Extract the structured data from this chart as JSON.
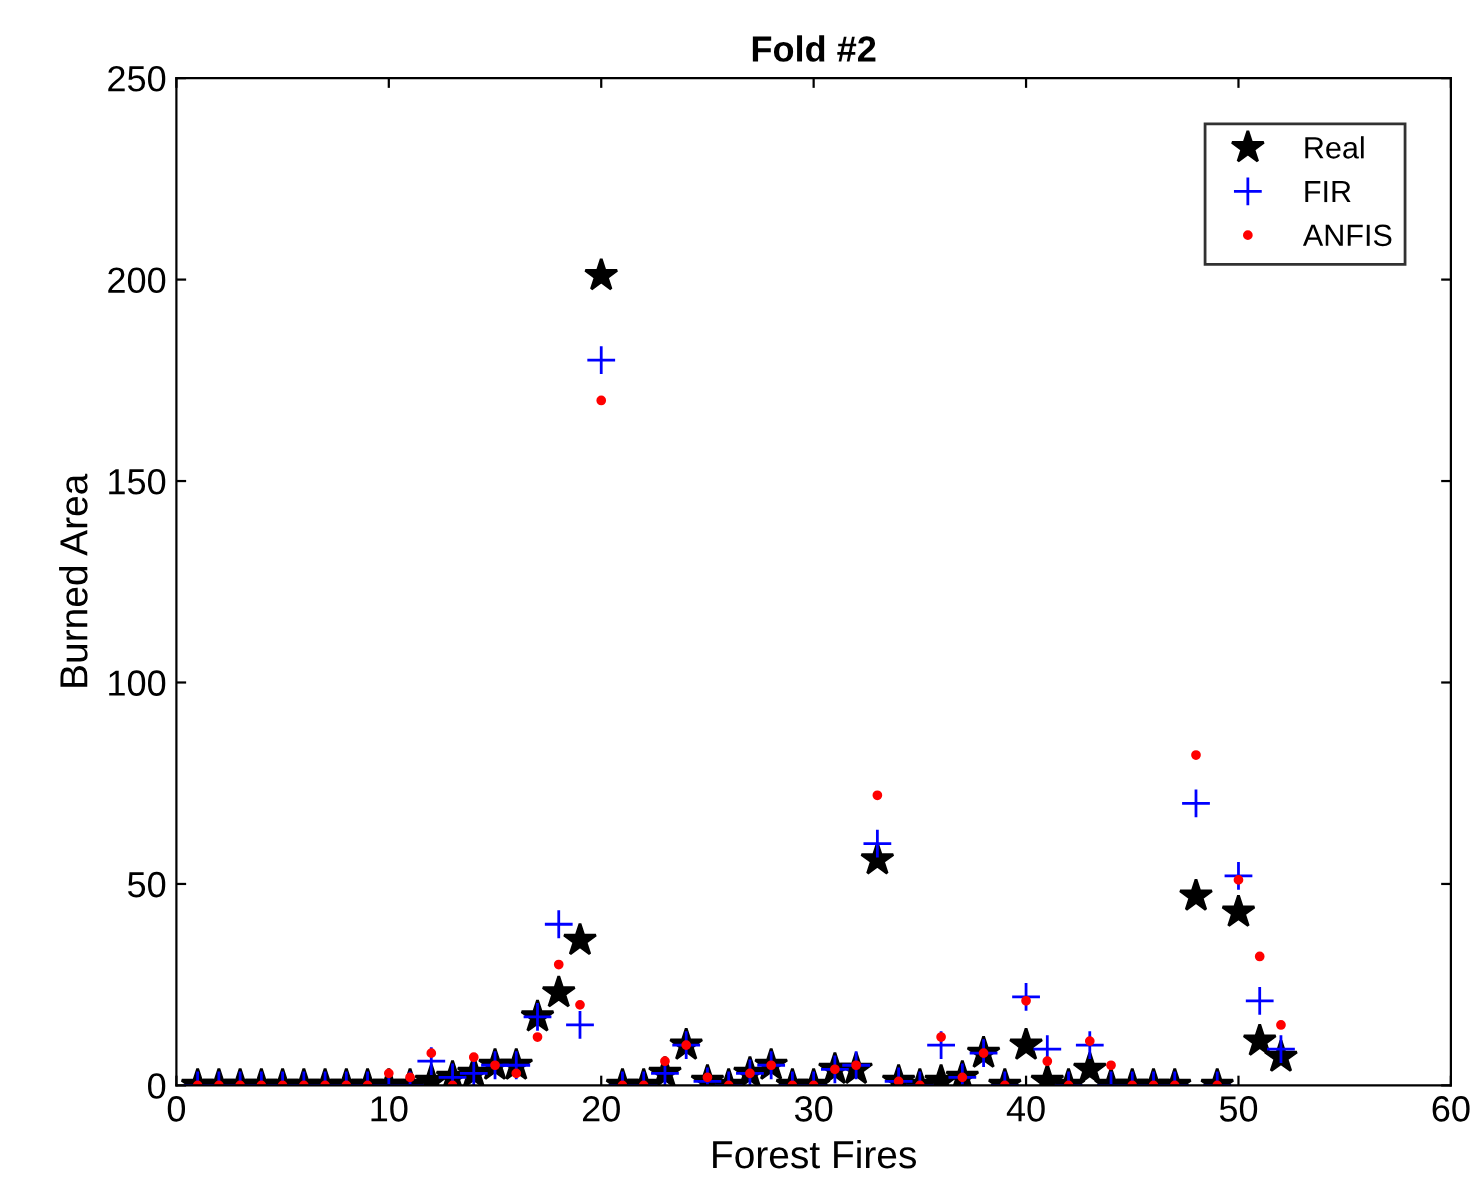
{
  "chart_data": {
    "type": "scatter",
    "title": "Fold #2",
    "xlabel": "Forest Fires",
    "ylabel": "Burned Area",
    "x": [
      1,
      2,
      3,
      4,
      5,
      6,
      7,
      8,
      9,
      10,
      11,
      12,
      13,
      14,
      15,
      16,
      17,
      18,
      19,
      20,
      21,
      22,
      23,
      24,
      25,
      26,
      27,
      28,
      29,
      30,
      31,
      32,
      33,
      34,
      35,
      36,
      37,
      38,
      39,
      40,
      41,
      42,
      43,
      44,
      45,
      46,
      47,
      48,
      49,
      50,
      51,
      52
    ],
    "series": [
      {
        "name": "Real",
        "color": "#000000",
        "marker": "star",
        "values": [
          0,
          0,
          0,
          0,
          0,
          0,
          0,
          0,
          0,
          0,
          0,
          1,
          2,
          3,
          5,
          5,
          17,
          23,
          36,
          201,
          0,
          0,
          3,
          10,
          1,
          0,
          3,
          5,
          0,
          0,
          4,
          4,
          56,
          1,
          0,
          1,
          2,
          8,
          0,
          10,
          1,
          0,
          4,
          0,
          0,
          0,
          0,
          47,
          0,
          43,
          11,
          7
        ]
      },
      {
        "name": "FIR",
        "color": "#0000ff",
        "marker": "cross",
        "values": [
          0,
          0,
          0,
          0,
          0,
          0,
          0,
          0,
          0,
          0,
          0,
          6,
          2,
          3,
          5,
          5,
          17,
          40,
          15,
          180,
          0,
          0,
          3,
          10,
          1,
          0,
          3,
          5,
          0,
          0,
          4,
          5,
          60,
          1,
          0,
          10,
          2,
          8,
          0,
          22,
          9,
          0,
          10,
          0,
          0,
          0,
          0,
          70,
          0,
          52,
          21,
          9
        ]
      },
      {
        "name": "ANFIS",
        "color": "#ff0000",
        "marker": "circle",
        "values": [
          0,
          0,
          0,
          0,
          0,
          0,
          0,
          0,
          0,
          3,
          2,
          8,
          0,
          7,
          5,
          3,
          12,
          30,
          20,
          170,
          0,
          0,
          6,
          10,
          2,
          0,
          3,
          5,
          0,
          0,
          4,
          5,
          72,
          1,
          0,
          12,
          2,
          8,
          0,
          21,
          6,
          0,
          11,
          5,
          0,
          0,
          0,
          82,
          0,
          51,
          32,
          15
        ]
      }
    ],
    "xlim": [
      0,
      60
    ],
    "xticks": [
      0,
      10,
      20,
      30,
      40,
      50,
      60
    ],
    "ylim": [
      0,
      250
    ],
    "yticks": [
      0,
      50,
      100,
      150,
      200,
      250
    ],
    "legend": "top right"
  }
}
